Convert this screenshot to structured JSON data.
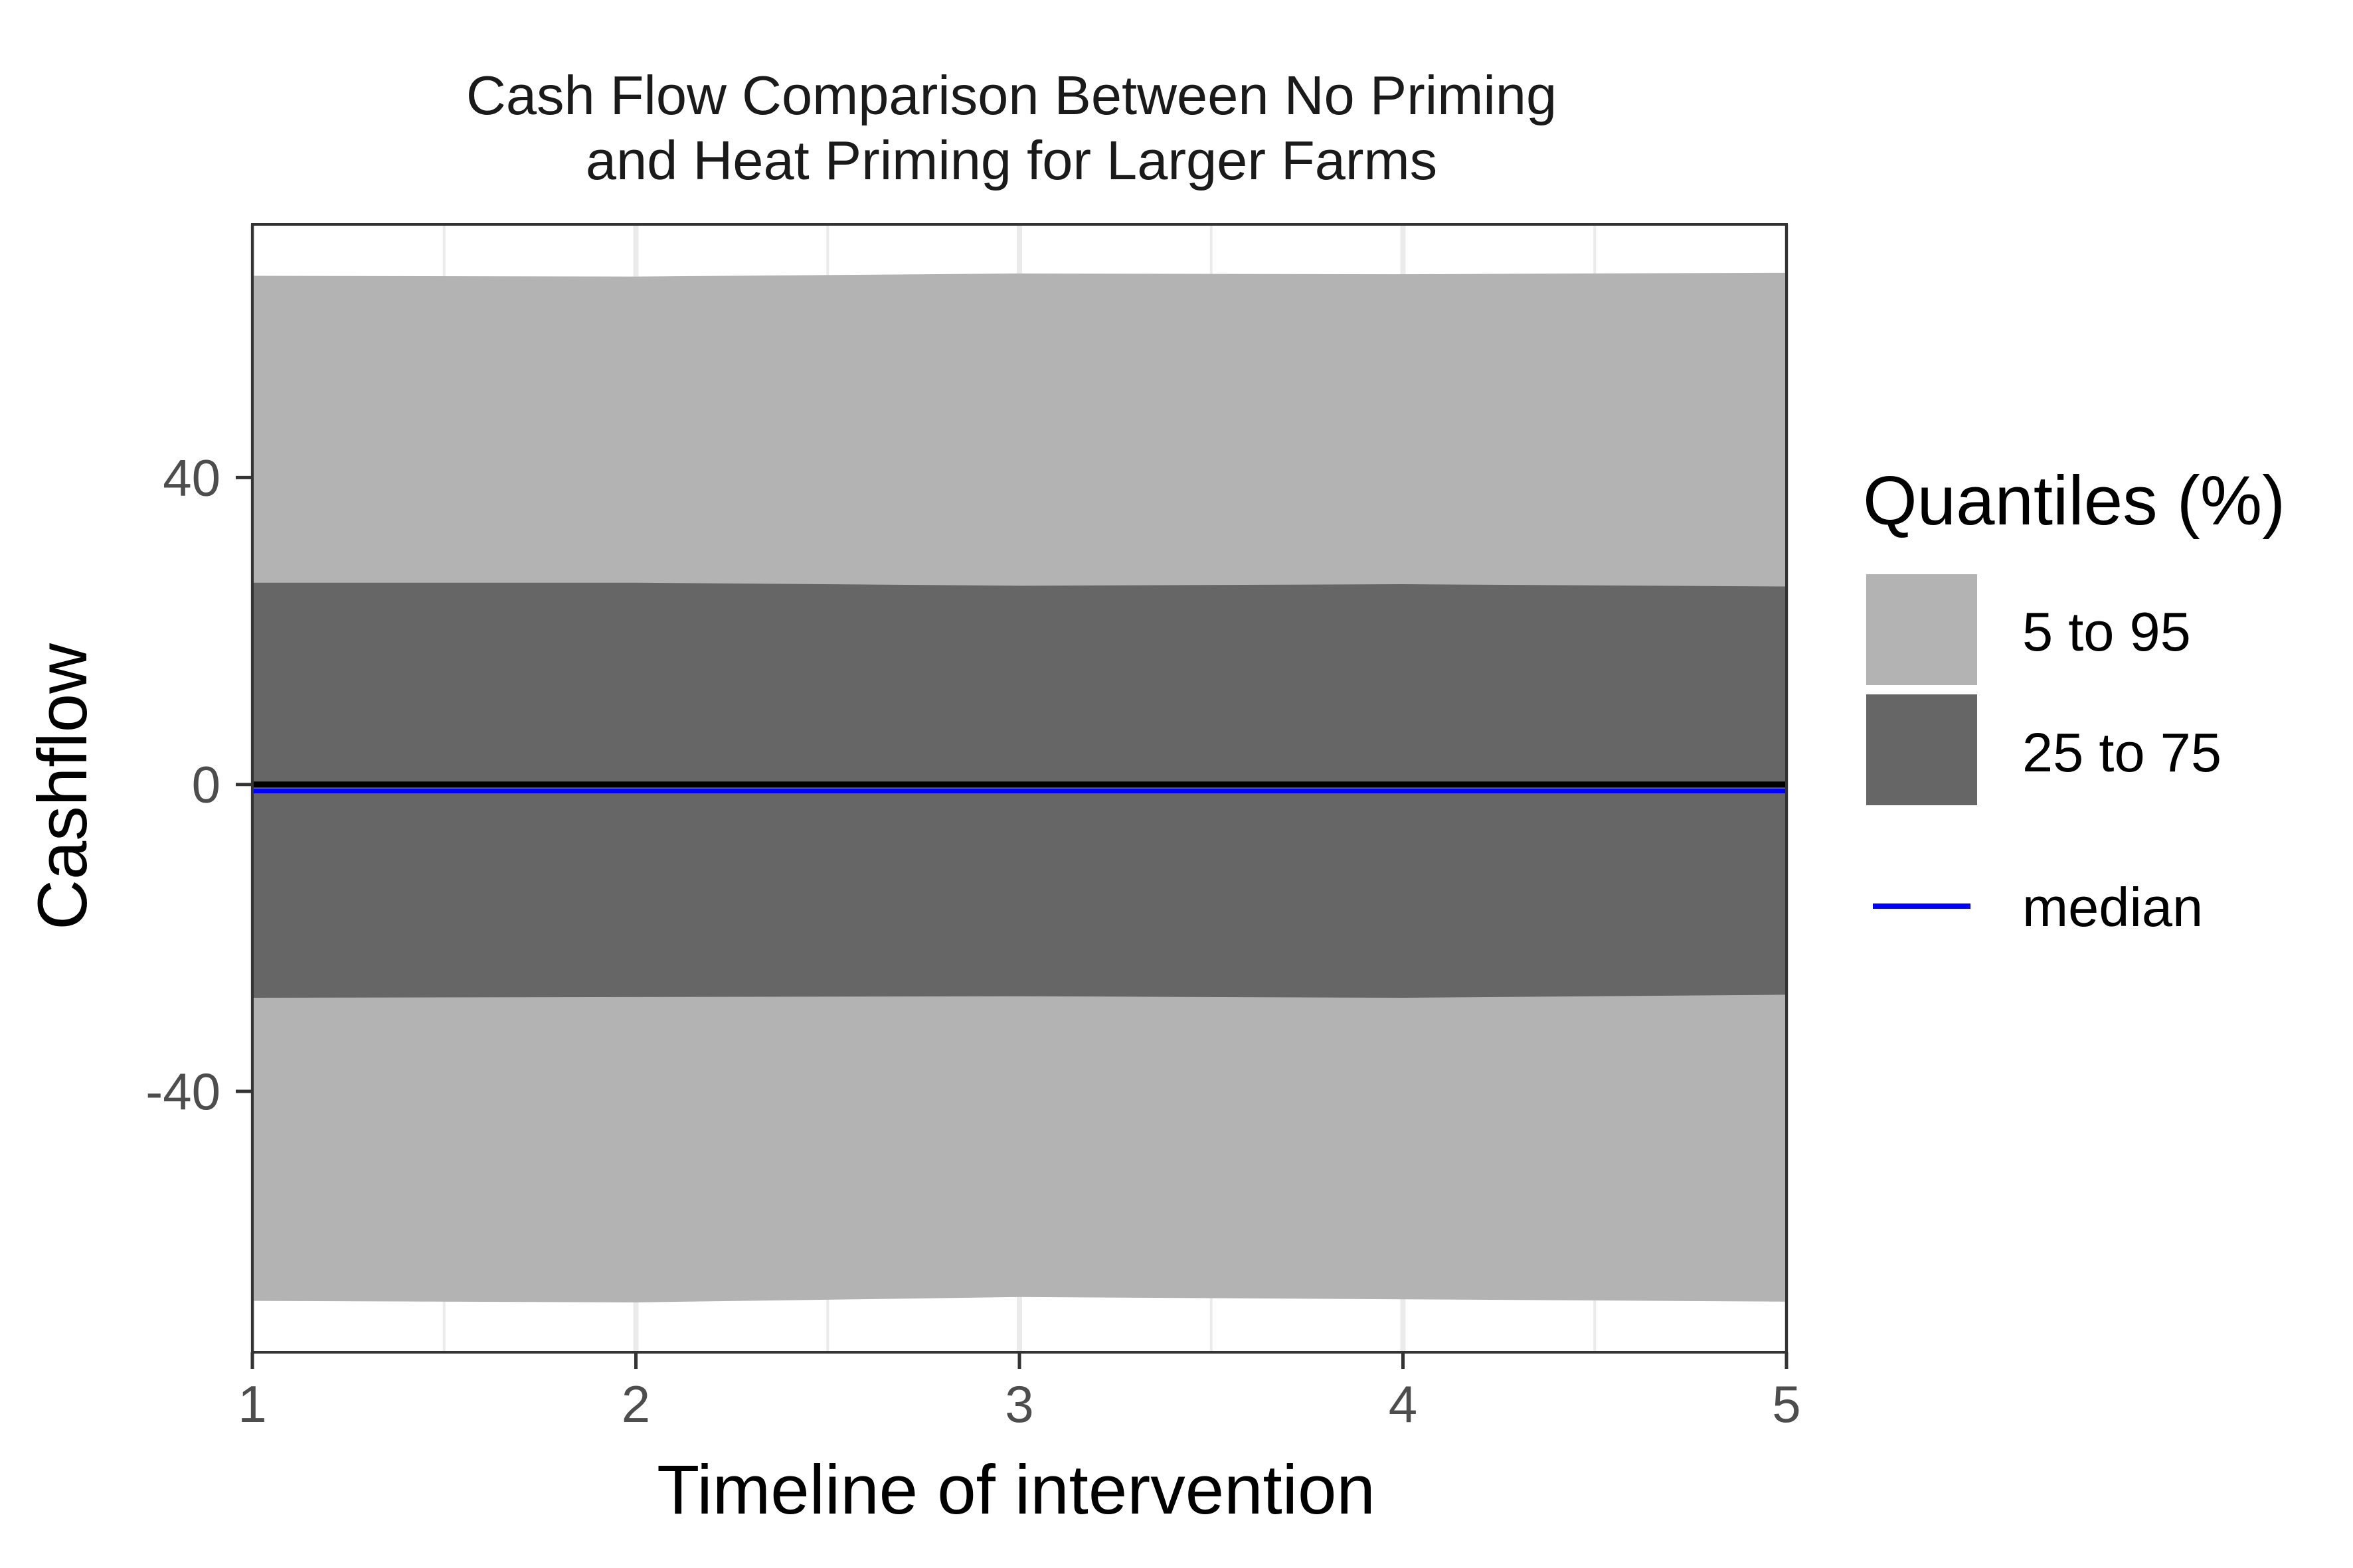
{
  "chart_data": {
    "type": "area",
    "title": "Cash Flow Comparison Between No Priming",
    "subtitle": "and Heat Priming for Larger Farms",
    "xlabel": "Timeline of intervention",
    "ylabel": "Cashflow",
    "x": [
      1,
      2,
      3,
      4,
      5
    ],
    "xlim": [
      1,
      5
    ],
    "ylim": [
      -74,
      73
    ],
    "xticks": [
      "1",
      "2",
      "3",
      "4",
      "5"
    ],
    "yticks": [
      "40",
      "0",
      "-40"
    ],
    "ytick_values": [
      40,
      0,
      -40
    ],
    "grid": true,
    "legend_position": "right",
    "legend_title": "Quantiles (%)",
    "reference_line": 0,
    "series": [
      {
        "name": "5 to 95",
        "kind": "band",
        "color": "#b3b3b3",
        "lower": [
          -67.3,
          -67.5,
          -66.8,
          -67.1,
          -67.4
        ],
        "upper": [
          66.3,
          66.2,
          66.6,
          66.5,
          66.7
        ]
      },
      {
        "name": "25 to 75",
        "kind": "band",
        "color": "#666666",
        "lower": [
          -27.8,
          -27.7,
          -27.6,
          -27.8,
          -27.4
        ],
        "upper": [
          26.3,
          26.3,
          25.9,
          26.1,
          25.8
        ]
      },
      {
        "name": "median",
        "kind": "line",
        "color": "#0000ff",
        "values": [
          -0.6,
          -0.6,
          -0.6,
          -0.6,
          -0.6
        ]
      }
    ]
  }
}
